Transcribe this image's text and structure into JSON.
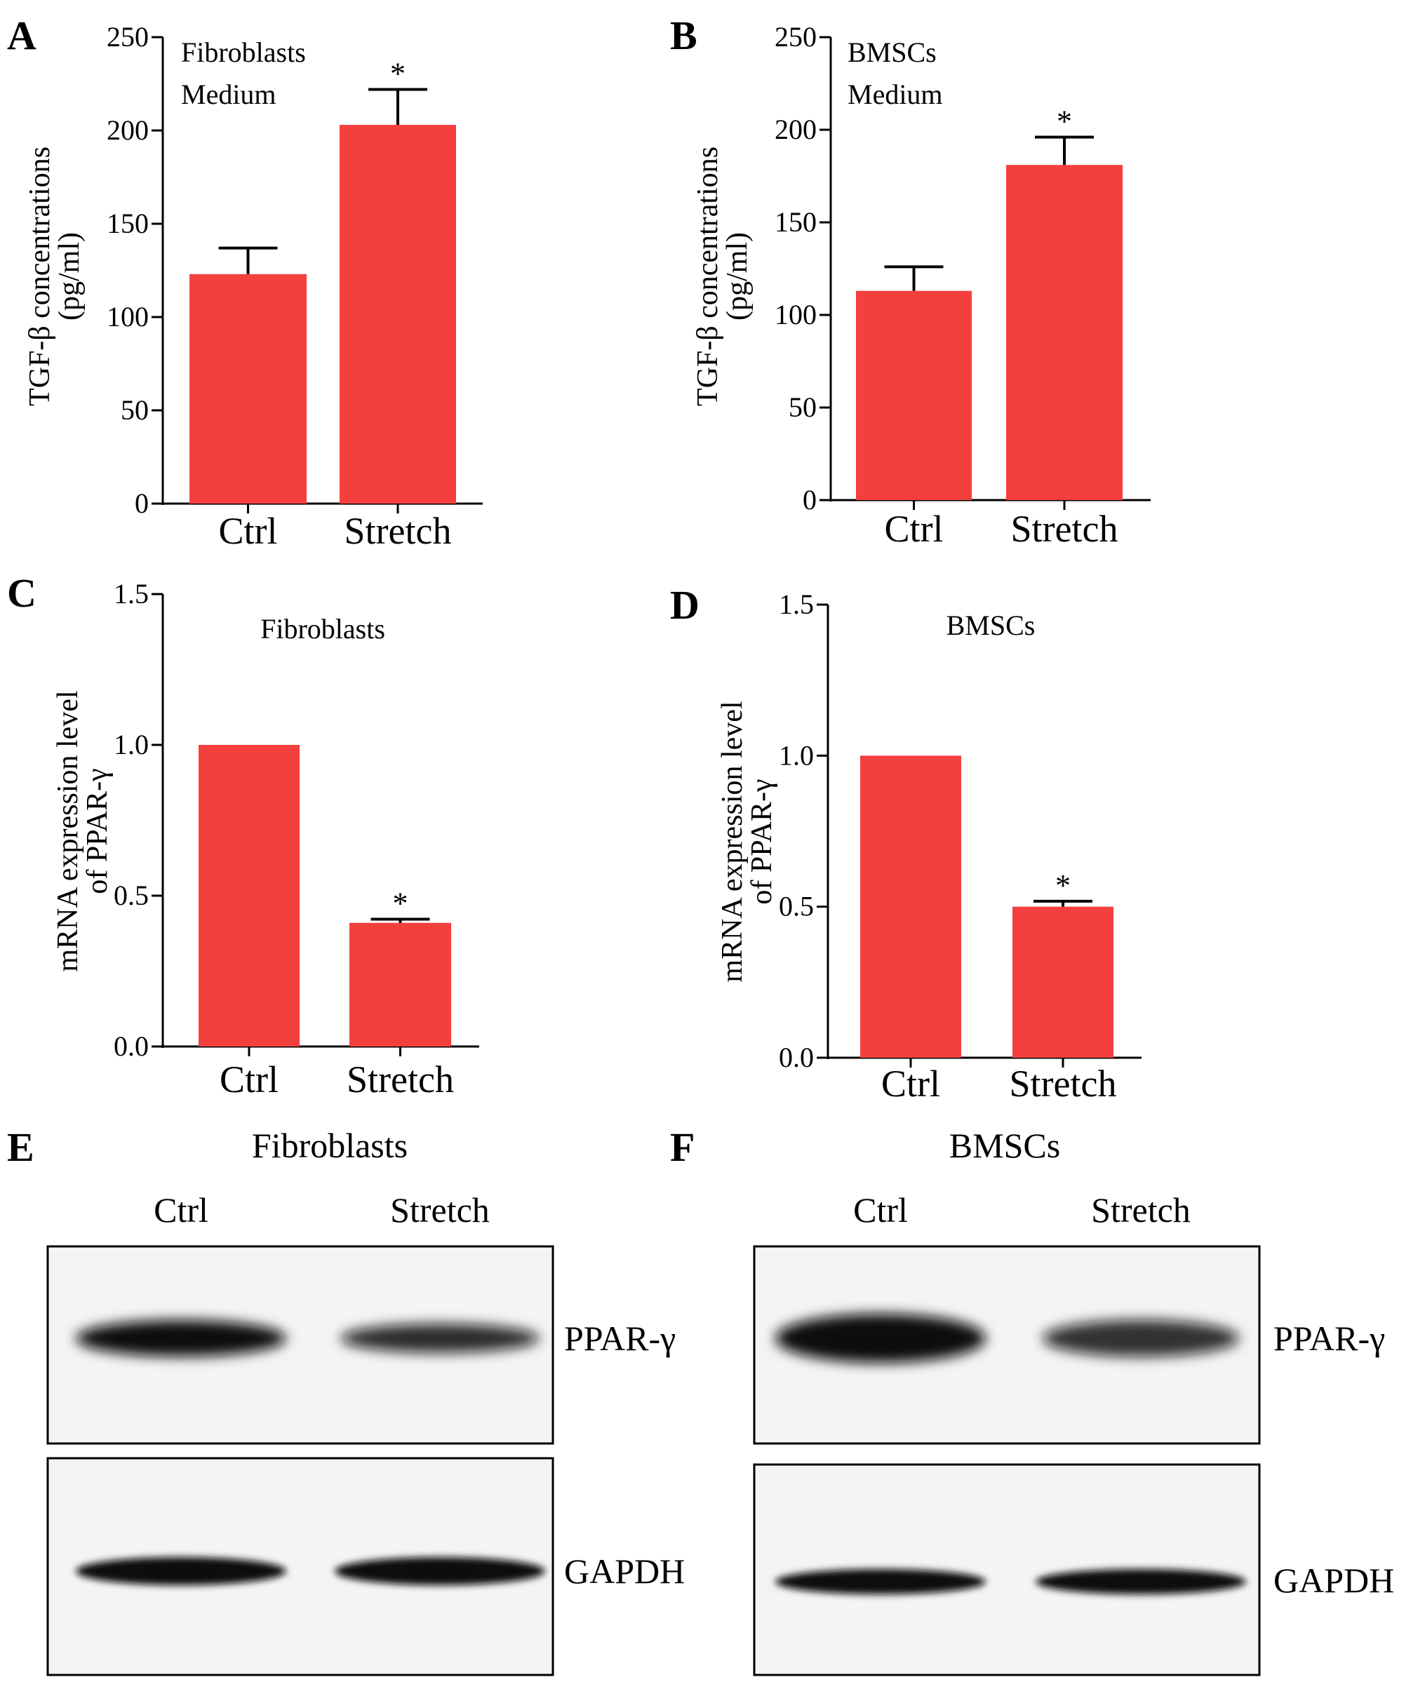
{
  "colors": {
    "bar": "#f43f3f",
    "axis": "#000000",
    "blot_bg": "#f4f4f4",
    "band": "#0a0a0a"
  },
  "chart_data": [
    {
      "panel": "A",
      "type": "bar",
      "categories": [
        "Ctrl",
        "Stretch"
      ],
      "values": [
        123,
        203
      ],
      "errors": [
        14,
        19
      ],
      "significance": [
        "",
        "*"
      ],
      "title_lines": [
        "Fibroblasts",
        "Medium"
      ],
      "ylabel_lines": [
        "TGF-β concentrations",
        "(pg/ml)"
      ],
      "ylim": [
        0,
        250
      ],
      "yticks": [
        0,
        50,
        100,
        150,
        200,
        250
      ]
    },
    {
      "panel": "B",
      "type": "bar",
      "categories": [
        "Ctrl",
        "Stretch"
      ],
      "values": [
        113,
        181
      ],
      "errors": [
        13,
        15
      ],
      "significance": [
        "",
        "*"
      ],
      "title_lines": [
        "BMSCs",
        "Medium"
      ],
      "ylabel_lines": [
        "TGF-β concentrations",
        "(pg/ml)"
      ],
      "ylim": [
        0,
        250
      ],
      "yticks": [
        0,
        50,
        100,
        150,
        200,
        250
      ]
    },
    {
      "panel": "C",
      "type": "bar",
      "categories": [
        "Ctrl",
        "Stretch"
      ],
      "values": [
        1.0,
        0.41
      ],
      "errors": [
        0,
        0.012
      ],
      "significance": [
        "",
        "*"
      ],
      "title_lines": [
        "Fibroblasts"
      ],
      "ylabel_lines": [
        "mRNA expression level",
        "of PPAR-γ"
      ],
      "ylim": [
        0,
        1.5
      ],
      "yticks": [
        "0.0",
        "0.5",
        "1.0",
        "1.5"
      ]
    },
    {
      "panel": "D",
      "type": "bar",
      "categories": [
        "Ctrl",
        "Stretch"
      ],
      "values": [
        1.0,
        0.5
      ],
      "errors": [
        0,
        0.018
      ],
      "significance": [
        "",
        "*"
      ],
      "title_lines": [
        "BMSCs"
      ],
      "ylabel_lines": [
        "mRNA expression level",
        "of PPAR-γ"
      ],
      "ylim": [
        0,
        1.5
      ],
      "yticks": [
        "0.0",
        "0.5",
        "1.0",
        "1.5"
      ]
    }
  ],
  "blots": [
    {
      "panel": "E",
      "title": "Fibroblasts",
      "lanes": [
        "Ctrl",
        "Stretch"
      ],
      "proteins": [
        "PPAR-γ",
        "GAPDH"
      ],
      "relative_intensity": {
        "PPAR-γ": [
          1.0,
          0.55
        ],
        "GAPDH": [
          1.0,
          1.0
        ]
      }
    },
    {
      "panel": "F",
      "title": "BMSCs",
      "lanes": [
        "Ctrl",
        "Stretch"
      ],
      "proteins": [
        "PPAR-γ",
        "GAPDH"
      ],
      "relative_intensity": {
        "PPAR-γ": [
          1.0,
          0.45
        ],
        "GAPDH": [
          1.0,
          1.0
        ]
      }
    }
  ]
}
